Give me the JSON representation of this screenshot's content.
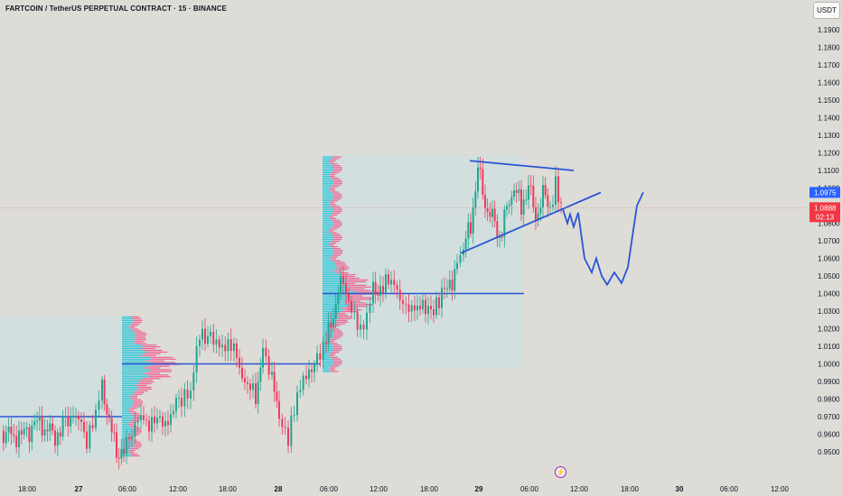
{
  "header": {
    "title": "FARTCOIN / TetherUS PERPETUAL CONTRACT · 15 · BINANCE",
    "currency": "USDT"
  },
  "colors": {
    "up": "#22a690",
    "down": "#ef3b5c",
    "annotation": "#2a55d6",
    "profile_up": "#26c6da",
    "profile_down": "#f06292",
    "range_box": "#cfe0e0"
  },
  "chart_data": {
    "type": "candlestick",
    "title": "FARTCOIN / TetherUS PERPETUAL CONTRACT · 15 · BINANCE",
    "ylim": [
      0.945,
      1.2
    ],
    "y_ticks": [
      "1.1900",
      "1.1800",
      "1.1700",
      "1.1600",
      "1.1500",
      "1.1400",
      "1.1300",
      "1.1200",
      "1.1100",
      "1.1000",
      "1.0900",
      "1.0800",
      "1.0700",
      "1.0600",
      "1.0500",
      "1.0400",
      "1.0300",
      "1.0200",
      "1.0100",
      "1.0000",
      "0.9900",
      "0.9800",
      "0.9700",
      "0.9600",
      "0.9500"
    ],
    "x_ticks": [
      "18:00",
      "27",
      "06:00",
      "12:00",
      "18:00",
      "28",
      "06:00",
      "12:00",
      "18:00",
      "29",
      "06:00",
      "12:00",
      "18:00",
      "30",
      "06:00",
      "12:00"
    ],
    "price_path": [
      [
        0,
        0.962
      ],
      [
        20,
        0.958
      ],
      [
        40,
        0.966
      ],
      [
        60,
        0.96
      ],
      [
        80,
        0.972
      ],
      [
        95,
        0.958
      ],
      [
        105,
        0.975
      ],
      [
        112,
        0.99
      ],
      [
        120,
        0.965
      ],
      [
        128,
        0.952
      ],
      [
        136,
        0.948
      ],
      [
        145,
        0.96
      ],
      [
        155,
        0.972
      ],
      [
        170,
        0.964
      ],
      [
        185,
        0.97
      ],
      [
        200,
        0.98
      ],
      [
        210,
        0.985
      ],
      [
        220,
        1.02
      ],
      [
        232,
        1.015
      ],
      [
        245,
        1.005
      ],
      [
        258,
        1.01
      ],
      [
        270,
        0.99
      ],
      [
        282,
        0.98
      ],
      [
        290,
        1.01
      ],
      [
        300,
        0.99
      ],
      [
        308,
        0.97
      ],
      [
        318,
        0.96
      ],
      [
        328,
        0.985
      ],
      [
        338,
        0.998
      ],
      [
        350,
        1.0
      ],
      [
        360,
        1.01
      ],
      [
        368,
        1.03
      ],
      [
        376,
        1.045
      ],
      [
        388,
        1.035
      ],
      [
        398,
        1.022
      ],
      [
        405,
        1.03
      ],
      [
        412,
        1.045
      ],
      [
        420,
        1.04
      ],
      [
        432,
        1.048
      ],
      [
        445,
        1.038
      ],
      [
        458,
        1.032
      ],
      [
        470,
        1.03
      ],
      [
        482,
        1.035
      ],
      [
        494,
        1.042
      ],
      [
        505,
        1.055
      ],
      [
        512,
        1.065
      ],
      [
        520,
        1.08
      ],
      [
        528,
        1.11
      ],
      [
        536,
        1.092
      ],
      [
        544,
        1.082
      ],
      [
        552,
        1.072
      ],
      [
        560,
        1.088
      ],
      [
        568,
        1.1
      ],
      [
        576,
        1.09
      ],
      [
        584,
        1.1
      ],
      [
        592,
        1.085
      ],
      [
        600,
        1.095
      ],
      [
        608,
        1.09
      ],
      [
        614,
        1.105
      ],
      [
        620,
        1.089
      ]
    ],
    "last_price": "1.0888",
    "countdown": "02:13",
    "projection_label": "1.0975",
    "volume_profiles": [
      {
        "x_start": "27 04:30",
        "range": [
          0.948,
          1.027
        ],
        "poc": 1.0
      },
      {
        "x_start": "28 06:00",
        "range": [
          0.996,
          1.118
        ],
        "poc": 1.04
      }
    ],
    "horizontal_levels": [
      0.97,
      1.0,
      1.04
    ],
    "trendlines": [
      {
        "from": [
          "29 00:00",
          1.0625
        ],
        "to": [
          "29 08:00",
          1.1155
        ],
        "type": "falling resistance"
      },
      {
        "from": [
          "29 00:00",
          1.0625
        ],
        "to": [
          "29 14:00",
          1.0975
        ],
        "type": "rising support"
      }
    ],
    "projection_path": [
      1.088,
      1.08,
      1.085,
      1.078,
      1.086,
      1.06,
      1.052,
      1.06,
      1.05,
      1.045,
      1.052,
      1.046,
      1.055,
      1.09,
      1.0975
    ]
  }
}
